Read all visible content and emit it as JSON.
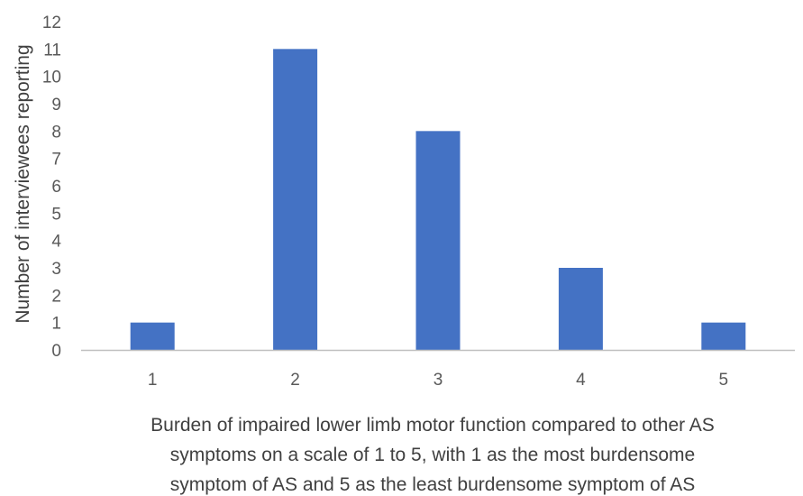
{
  "chart_data": {
    "type": "bar",
    "categories": [
      "1",
      "2",
      "3",
      "4",
      "5"
    ],
    "values": [
      1,
      11,
      8,
      3,
      1
    ],
    "title": "",
    "xlabel_lines": [
      "Burden of impaired lower limb motor function compared to other AS",
      "symptoms on a scale of 1 to 5, with 1 as the most burdensome",
      "symptom of AS and 5 as the least burdensome symptom of AS"
    ],
    "ylabel": "Number of interviewees reporting",
    "ylim": [
      0,
      12
    ],
    "yticks": [
      0,
      1,
      2,
      3,
      4,
      5,
      6,
      7,
      8,
      9,
      10,
      11,
      12
    ],
    "grid": false,
    "legend": "none",
    "bar_color": "#4472C4",
    "axis_color": "#BFBFBF"
  }
}
